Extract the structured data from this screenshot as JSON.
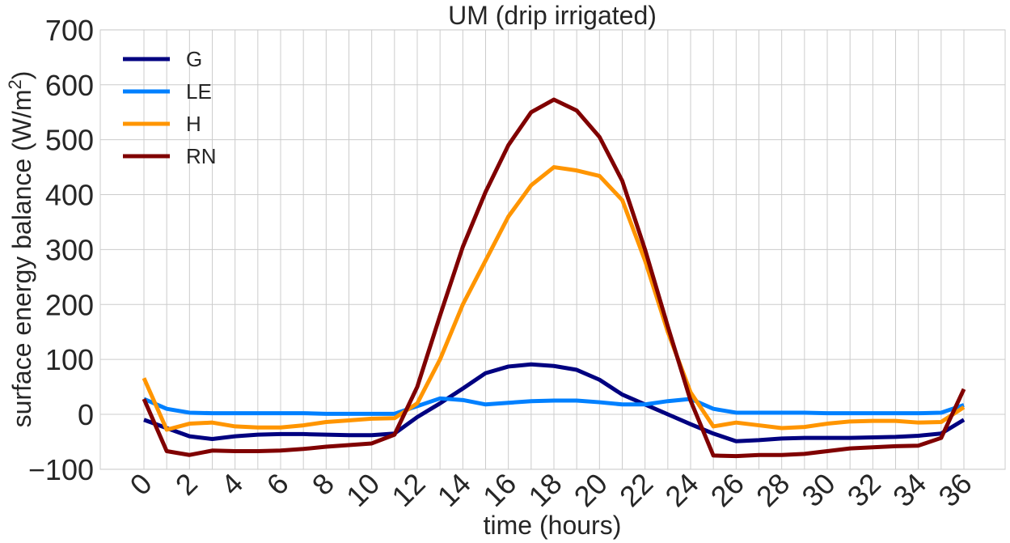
{
  "chart_data": {
    "type": "line",
    "title": "UM (drip irrigated)",
    "xlabel": "time (hours)",
    "ylabel": "surface energy balance (W/m²)",
    "ylabel_base": "surface energy balance (W/m",
    "ylabel_sup": "2",
    "ylabel_end": ")",
    "xlim": [
      -1.9,
      37.8
    ],
    "ylim": [
      -100,
      700
    ],
    "grid": true,
    "legend_position": "top-left",
    "xticks": [
      0,
      2,
      4,
      6,
      8,
      10,
      12,
      14,
      16,
      18,
      20,
      22,
      24,
      26,
      28,
      30,
      32,
      34,
      36
    ],
    "yticks": [
      -100,
      0,
      100,
      200,
      300,
      400,
      500,
      600,
      700
    ],
    "ytick_labels": [
      "−100",
      "0",
      "100",
      "200",
      "300",
      "400",
      "500",
      "600",
      "700"
    ],
    "x": [
      0,
      1,
      2,
      3,
      4,
      5,
      6,
      7,
      8,
      9,
      10,
      11,
      12,
      13,
      14,
      15,
      16,
      17,
      18,
      19,
      20,
      21,
      22,
      23,
      24,
      25,
      26,
      27,
      28,
      29,
      30,
      31,
      32,
      33,
      34,
      35,
      36
    ],
    "series": [
      {
        "name": "G",
        "color": "#000080",
        "values": [
          -10,
          -25,
          -40,
          -45,
          -40,
          -37,
          -36,
          -36,
          -37,
          -38,
          -38,
          -35,
          -5,
          20,
          47,
          75,
          87,
          91,
          88,
          81,
          63,
          36,
          18,
          0,
          -18,
          -35,
          -49,
          -47,
          -44,
          -43,
          -43,
          -43,
          -42,
          -41,
          -39,
          -35,
          -10
        ]
      },
      {
        "name": "LE",
        "color": "#0080ff",
        "values": [
          28,
          10,
          3,
          2,
          2,
          2,
          2,
          2,
          1,
          1,
          1,
          1,
          15,
          29,
          26,
          18,
          21,
          24,
          25,
          25,
          22,
          18,
          18,
          24,
          28,
          10,
          3,
          3,
          3,
          3,
          2,
          2,
          2,
          2,
          2,
          3,
          17
        ]
      },
      {
        "name": "H",
        "color": "#ff9500",
        "values": [
          66,
          -28,
          -17,
          -15,
          -22,
          -24,
          -24,
          -20,
          -14,
          -11,
          -8,
          -7,
          20,
          100,
          200,
          280,
          360,
          417,
          450,
          444,
          434,
          390,
          280,
          150,
          40,
          -22,
          -15,
          -20,
          -25,
          -23,
          -17,
          -13,
          -12,
          -12,
          -15,
          -14,
          13
        ]
      },
      {
        "name": "RN",
        "color": "#800000",
        "values": [
          28,
          -67,
          -74,
          -66,
          -67,
          -67,
          -66,
          -63,
          -59,
          -56,
          -53,
          -37,
          50,
          180,
          305,
          405,
          490,
          550,
          573,
          553,
          505,
          425,
          300,
          160,
          25,
          -75,
          -76,
          -74,
          -74,
          -72,
          -67,
          -62,
          -60,
          -58,
          -57,
          -43,
          46
        ]
      }
    ]
  }
}
